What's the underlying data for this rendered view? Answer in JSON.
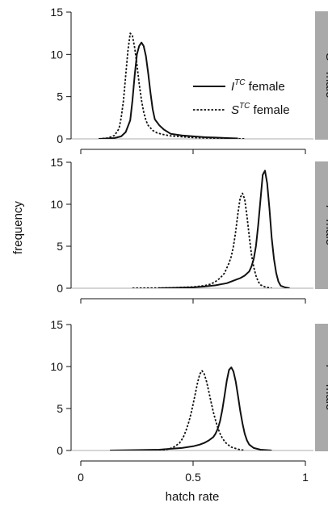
{
  "colors": {
    "curve": "#111111",
    "strip": "#a9a9a9",
    "baseline": "#c8c8c8",
    "axis": "#111111"
  },
  "figure": {
    "ylabel": "frequency",
    "xlabel": "hatch rate"
  },
  "chart_data": [
    {
      "type": "line",
      "panel_label": "S male",
      "panel_label_main": "S",
      "panel_label_sup": "TC",
      "panel_label_rest": "male",
      "ylim": [
        0,
        15
      ],
      "yticks": [
        0,
        5,
        10,
        15
      ],
      "xlim": [
        0,
        1
      ],
      "show_xtick_labels": false,
      "legend": {
        "position": "right",
        "entries": [
          {
            "main": "I",
            "sup": "TC",
            "rest": "female",
            "style": "solid"
          },
          {
            "main": "S",
            "sup": "TC",
            "rest": "female",
            "style": "dotted"
          }
        ]
      },
      "series": [
        {
          "name": "I female",
          "style": "solid",
          "x": [
            0.08,
            0.15,
            0.18,
            0.2,
            0.22,
            0.23,
            0.24,
            0.25,
            0.26,
            0.27,
            0.28,
            0.29,
            0.3,
            0.31,
            0.32,
            0.33,
            0.35,
            0.37,
            0.4,
            0.45,
            0.5,
            0.55,
            0.6,
            0.65,
            0.7
          ],
          "y": [
            0.0,
            0.1,
            0.3,
            0.8,
            2.2,
            4.5,
            7.5,
            10.0,
            11.0,
            11.4,
            11.0,
            9.8,
            7.8,
            5.5,
            3.5,
            2.3,
            1.6,
            1.1,
            0.6,
            0.4,
            0.3,
            0.2,
            0.15,
            0.1,
            0.05
          ]
        },
        {
          "name": "S female",
          "style": "dotted",
          "x": [
            0.08,
            0.12,
            0.15,
            0.17,
            0.18,
            0.19,
            0.2,
            0.21,
            0.22,
            0.23,
            0.24,
            0.25,
            0.26,
            0.27,
            0.28,
            0.29,
            0.3,
            0.32,
            0.34,
            0.37,
            0.4,
            0.45,
            0.5,
            0.6,
            0.73
          ],
          "y": [
            0.0,
            0.1,
            0.4,
            1.2,
            2.5,
            4.5,
            7.5,
            10.5,
            12.5,
            12.2,
            10.8,
            8.8,
            6.5,
            4.6,
            3.2,
            2.2,
            1.6,
            1.0,
            0.7,
            0.5,
            0.35,
            0.25,
            0.15,
            0.08,
            0.0
          ]
        }
      ]
    },
    {
      "type": "line",
      "panel_label": "I male",
      "panel_label_main": "I",
      "panel_label_sup": "TC",
      "panel_label_rest": "male",
      "ylim": [
        0,
        15
      ],
      "yticks": [
        0,
        5,
        10,
        15
      ],
      "xlim": [
        0,
        1
      ],
      "show_xtick_labels": false,
      "series": [
        {
          "name": "I female",
          "style": "solid",
          "x": [
            0.35,
            0.5,
            0.55,
            0.6,
            0.63,
            0.65,
            0.67,
            0.69,
            0.71,
            0.73,
            0.75,
            0.76,
            0.77,
            0.78,
            0.79,
            0.8,
            0.81,
            0.82,
            0.83,
            0.84,
            0.85,
            0.86,
            0.87,
            0.88,
            0.89,
            0.91,
            0.93
          ],
          "y": [
            0.0,
            0.1,
            0.2,
            0.35,
            0.5,
            0.6,
            0.8,
            1.0,
            1.2,
            1.5,
            2.0,
            2.6,
            3.5,
            5.0,
            7.5,
            10.5,
            13.5,
            14.0,
            12.5,
            9.5,
            6.0,
            3.5,
            1.8,
            0.8,
            0.3,
            0.1,
            0.0
          ]
        },
        {
          "name": "S female",
          "style": "dotted",
          "x": [
            0.23,
            0.4,
            0.5,
            0.55,
            0.58,
            0.6,
            0.62,
            0.64,
            0.65,
            0.66,
            0.67,
            0.68,
            0.69,
            0.7,
            0.71,
            0.72,
            0.73,
            0.74,
            0.75,
            0.76,
            0.77,
            0.78,
            0.79,
            0.8,
            0.82,
            0.85
          ],
          "y": [
            0.0,
            0.05,
            0.15,
            0.3,
            0.5,
            0.8,
            1.2,
            1.8,
            2.4,
            3.0,
            3.8,
            5.0,
            6.8,
            9.0,
            10.8,
            11.3,
            10.6,
            8.6,
            6.2,
            4.0,
            2.5,
            1.5,
            0.8,
            0.4,
            0.15,
            0.0
          ]
        }
      ]
    },
    {
      "type": "line",
      "panel_label": "I male",
      "panel_label_main": "I",
      "panel_label_sup": "TCV",
      "panel_label_rest": "male",
      "ylim": [
        0,
        15
      ],
      "yticks": [
        0,
        5,
        10,
        15
      ],
      "xlim": [
        0,
        1
      ],
      "xticks": [
        0,
        0.5,
        1
      ],
      "xtick_labels": [
        "0",
        "0.5",
        "1"
      ],
      "show_xtick_labels": true,
      "series": [
        {
          "name": "I female",
          "style": "solid",
          "x": [
            0.13,
            0.25,
            0.35,
            0.4,
            0.45,
            0.5,
            0.53,
            0.55,
            0.57,
            0.59,
            0.6,
            0.61,
            0.62,
            0.63,
            0.64,
            0.65,
            0.66,
            0.67,
            0.68,
            0.69,
            0.7,
            0.71,
            0.72,
            0.73,
            0.74,
            0.75,
            0.77,
            0.8,
            0.85
          ],
          "y": [
            0.0,
            0.05,
            0.1,
            0.2,
            0.3,
            0.5,
            0.7,
            0.9,
            1.2,
            1.6,
            2.0,
            2.6,
            3.5,
            4.8,
            6.5,
            8.3,
            9.6,
            9.9,
            9.4,
            8.2,
            6.5,
            4.7,
            3.2,
            2.0,
            1.2,
            0.7,
            0.3,
            0.1,
            0.0
          ]
        },
        {
          "name": "S female",
          "style": "dotted",
          "x": [
            0.3,
            0.38,
            0.4,
            0.42,
            0.44,
            0.45,
            0.46,
            0.47,
            0.48,
            0.49,
            0.5,
            0.51,
            0.52,
            0.53,
            0.54,
            0.55,
            0.56,
            0.57,
            0.58,
            0.59,
            0.6,
            0.61,
            0.62,
            0.63,
            0.64,
            0.65,
            0.67,
            0.7,
            0.73
          ],
          "y": [
            0.0,
            0.1,
            0.25,
            0.5,
            0.9,
            1.3,
            1.8,
            2.5,
            3.3,
            4.3,
            5.5,
            6.8,
            8.1,
            9.1,
            9.5,
            9.1,
            8.2,
            7.0,
            5.8,
            4.6,
            3.6,
            2.7,
            2.0,
            1.5,
            1.1,
            0.8,
            0.4,
            0.15,
            0.0
          ]
        }
      ]
    }
  ]
}
